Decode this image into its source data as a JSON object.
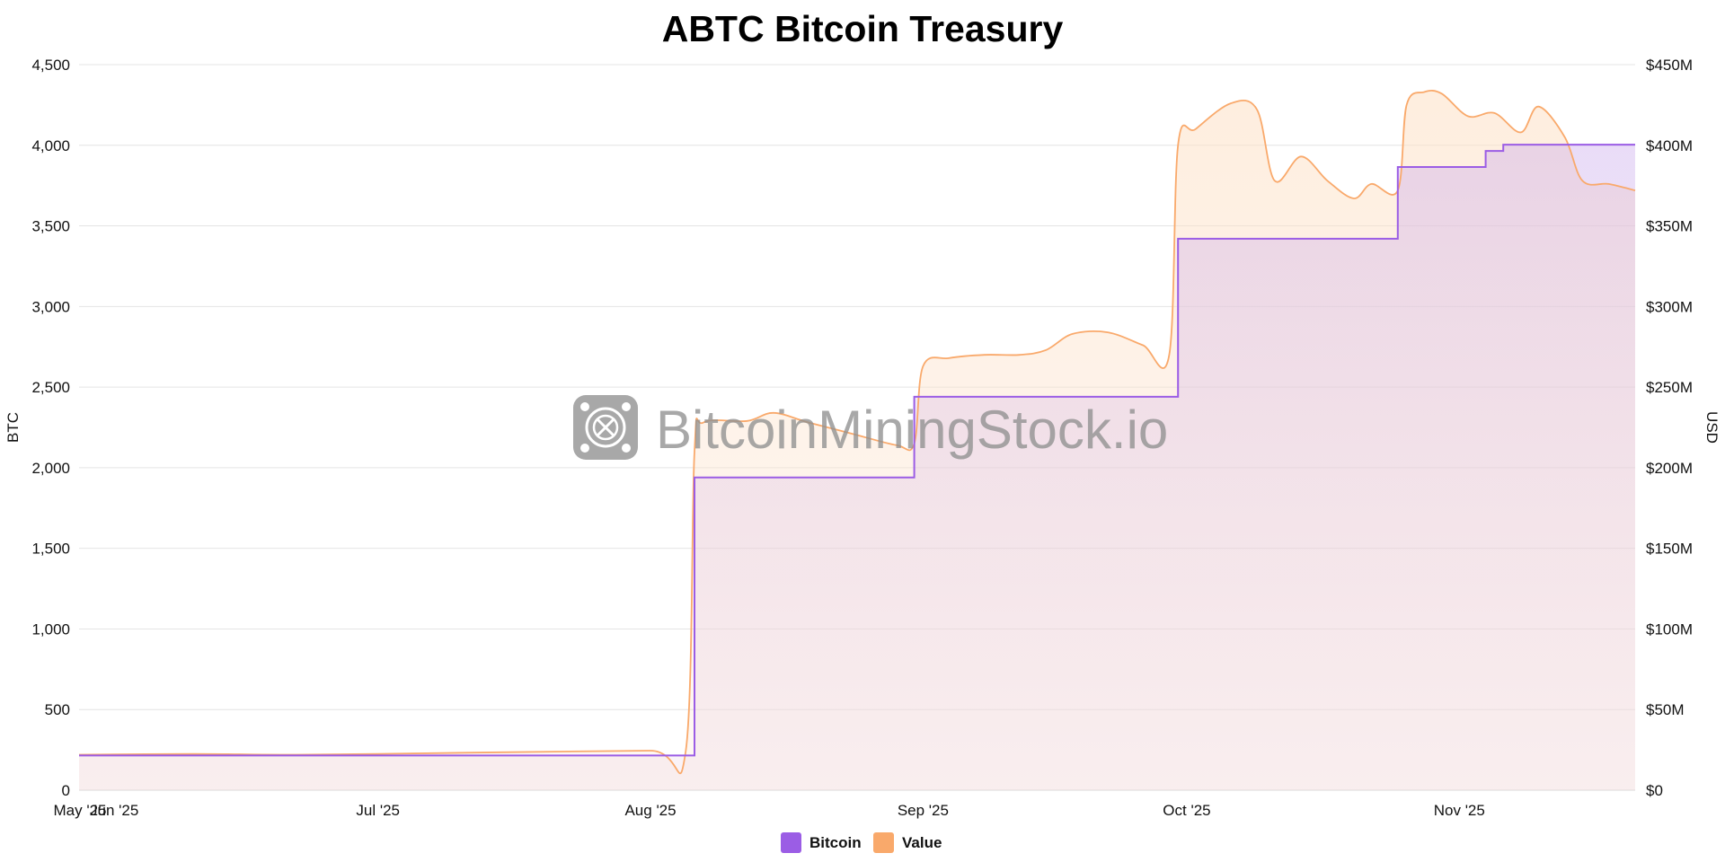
{
  "chart_data": {
    "type": "area",
    "title": "ABTC Bitcoin Treasury",
    "y_left_label": "BTC",
    "y_right_label": "USD",
    "y_left_ticks": [
      "0",
      "500",
      "1,000",
      "1,500",
      "2,000",
      "2,500",
      "3,000",
      "3,500",
      "4,000",
      "4,500"
    ],
    "y_right_ticks": [
      "$0",
      "$50M",
      "$100M",
      "$150M",
      "$200M",
      "$250M",
      "$300M",
      "$350M",
      "$400M",
      "$450M"
    ],
    "y_left_range": [
      0,
      4500
    ],
    "y_right_range_musd": [
      0,
      450
    ],
    "x_range": [
      "2025-05-28",
      "2025-11-21"
    ],
    "x_ticks": [
      {
        "date": "2025-06-01",
        "label": "Jun '25"
      },
      {
        "date": "2025-07-01",
        "label": "Jul '25"
      },
      {
        "date": "2025-08-01",
        "label": "Aug '25"
      },
      {
        "date": "2025-09-01",
        "label": "Sep '25"
      },
      {
        "date": "2025-10-01",
        "label": "Oct '25"
      },
      {
        "date": "2025-11-01",
        "label": "Nov '25"
      }
    ],
    "start_label": "May '25",
    "grid": true,
    "legend_position": "bottom-center",
    "series": [
      {
        "name": "Bitcoin",
        "axis": "left",
        "unit": "BTC",
        "color": "#9b5de5",
        "step": true,
        "points": [
          [
            "2025-05-28",
            215
          ],
          [
            "2025-08-06",
            1940
          ],
          [
            "2025-08-31",
            2440
          ],
          [
            "2025-09-30",
            3420
          ],
          [
            "2025-10-25",
            3865
          ],
          [
            "2025-11-04",
            3965
          ],
          [
            "2025-11-06",
            4004
          ],
          [
            "2025-11-21",
            4004
          ]
        ]
      },
      {
        "name": "Value",
        "axis": "right",
        "unit": "USD millions",
        "color": "#f9a96b",
        "step": false,
        "points": [
          [
            "2025-05-28",
            22
          ],
          [
            "2025-06-10",
            22.5
          ],
          [
            "2025-06-20",
            22
          ],
          [
            "2025-07-01",
            22.5
          ],
          [
            "2025-07-15",
            23.5
          ],
          [
            "2025-08-01",
            24.5
          ],
          [
            "2025-08-05",
            24
          ],
          [
            "2025-08-06",
            210
          ],
          [
            "2025-08-07",
            228
          ],
          [
            "2025-08-12",
            229
          ],
          [
            "2025-08-15",
            234
          ],
          [
            "2025-08-19",
            228
          ],
          [
            "2025-08-24",
            221
          ],
          [
            "2025-08-29",
            214
          ],
          [
            "2025-08-31",
            215
          ],
          [
            "2025-09-01",
            263
          ],
          [
            "2025-09-04",
            268
          ],
          [
            "2025-09-08",
            270
          ],
          [
            "2025-09-12",
            270
          ],
          [
            "2025-09-15",
            273
          ],
          [
            "2025-09-18",
            283
          ],
          [
            "2025-09-22",
            284
          ],
          [
            "2025-09-26",
            276
          ],
          [
            "2025-09-29",
            270
          ],
          [
            "2025-09-30",
            400
          ],
          [
            "2025-10-02",
            410
          ],
          [
            "2025-10-06",
            426
          ],
          [
            "2025-10-09",
            422
          ],
          [
            "2025-10-11",
            378
          ],
          [
            "2025-10-14",
            393
          ],
          [
            "2025-10-17",
            378
          ],
          [
            "2025-10-20",
            367
          ],
          [
            "2025-10-22",
            376
          ],
          [
            "2025-10-25",
            372
          ],
          [
            "2025-10-26",
            425
          ],
          [
            "2025-10-28",
            433
          ],
          [
            "2025-10-30",
            432
          ],
          [
            "2025-11-02",
            418
          ],
          [
            "2025-11-05",
            420
          ],
          [
            "2025-11-08",
            408
          ],
          [
            "2025-11-10",
            424
          ],
          [
            "2025-11-13",
            405
          ],
          [
            "2025-11-15",
            378
          ],
          [
            "2025-11-18",
            376
          ],
          [
            "2025-11-21",
            372
          ]
        ]
      }
    ]
  },
  "legend": [
    {
      "label": "Bitcoin",
      "color": "#9b5de5"
    },
    {
      "label": "Value",
      "color": "#f9a96b"
    }
  ],
  "watermark": {
    "text": "BitcoinMiningStock.io",
    "icon": "bitcoin-mining-logo-icon"
  }
}
